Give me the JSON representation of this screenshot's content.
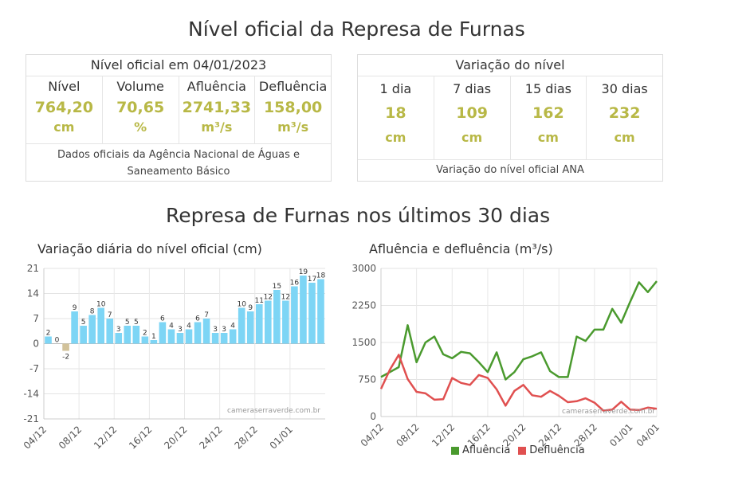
{
  "page_title": "Nível oficial da Represa de Furnas",
  "official": {
    "caption": "Nível oficial em 04/01/2023",
    "items": [
      {
        "label": "Nível",
        "value": "764,20",
        "unit": "cm"
      },
      {
        "label": "Volume",
        "value": "70,65",
        "unit": "%"
      },
      {
        "label": "Afluência",
        "value": "2741,33",
        "unit": "m³/s"
      },
      {
        "label": "Defluência",
        "value": "158,00",
        "unit": "m³/s"
      }
    ],
    "footer": "Dados oficiais da Agência Nacional de Águas e Saneamento Básico"
  },
  "variation": {
    "caption": "Variação do nível",
    "items": [
      {
        "label": "1 dia",
        "value": "18",
        "unit": "cm"
      },
      {
        "label": "7 dias",
        "value": "109",
        "unit": "cm"
      },
      {
        "label": "15 dias",
        "value": "162",
        "unit": "cm"
      },
      {
        "label": "30 dias",
        "value": "232",
        "unit": "cm"
      }
    ],
    "footer": "Variação do nível oficial ANA"
  },
  "section_title": "Represa de Furnas nos últimos 30 dias",
  "colors": {
    "accent": "#b8b846",
    "bar_pos": "#7dd5f5",
    "bar_neg": "#d2c29a",
    "afluencia": "#4a9a2e",
    "defluencia": "#e05050"
  },
  "chart_data": [
    {
      "type": "bar",
      "title": "Variação diária do nível oficial (cm)",
      "watermark": "cameraserraverde.com.br",
      "ylim": [
        -21,
        21
      ],
      "yticks": [
        21,
        14,
        7,
        0,
        -7,
        -14,
        -21
      ],
      "x_tick_labels": [
        "04/12",
        "08/12",
        "12/12",
        "16/12",
        "20/12",
        "24/12",
        "28/12",
        "01/01"
      ],
      "x_tick_indices": [
        0,
        4,
        8,
        12,
        16,
        20,
        24,
        28
      ],
      "values": [
        2,
        0,
        -2,
        9,
        5,
        8,
        10,
        7,
        3,
        5,
        5,
        2,
        1,
        6,
        4,
        3,
        4,
        6,
        7,
        3,
        3,
        4,
        10,
        9,
        11,
        12,
        15,
        12,
        16,
        19,
        17,
        18
      ],
      "grid": true
    },
    {
      "type": "line",
      "title": "Afluência e defluência (m³/s)",
      "watermark": "cameraserraverde.com.br",
      "ylim": [
        0,
        3000
      ],
      "yticks": [
        3000,
        2250,
        1500,
        750,
        0
      ],
      "x_tick_labels": [
        "04/12",
        "08/12",
        "12/12",
        "16/12",
        "20/12",
        "24/12",
        "28/12",
        "01/01",
        "04/01"
      ],
      "x_tick_indices": [
        0,
        4,
        8,
        12,
        16,
        20,
        24,
        28,
        31
      ],
      "legend_position": "bottom",
      "series": [
        {
          "name": "Afluência",
          "values": [
            800,
            900,
            1000,
            1850,
            1100,
            1500,
            1620,
            1260,
            1180,
            1310,
            1280,
            1100,
            900,
            1300,
            750,
            900,
            1160,
            1220,
            1300,
            920,
            800,
            800,
            1620,
            1530,
            1760,
            1760,
            2180,
            1900,
            2320,
            2720,
            2520,
            2741
          ]
        },
        {
          "name": "Defluência",
          "values": [
            560,
            950,
            1250,
            760,
            500,
            470,
            340,
            350,
            780,
            680,
            640,
            840,
            780,
            550,
            220,
            520,
            640,
            430,
            400,
            520,
            420,
            290,
            310,
            370,
            280,
            120,
            140,
            300,
            140,
            130,
            180,
            158
          ]
        }
      ],
      "grid": true
    }
  ]
}
